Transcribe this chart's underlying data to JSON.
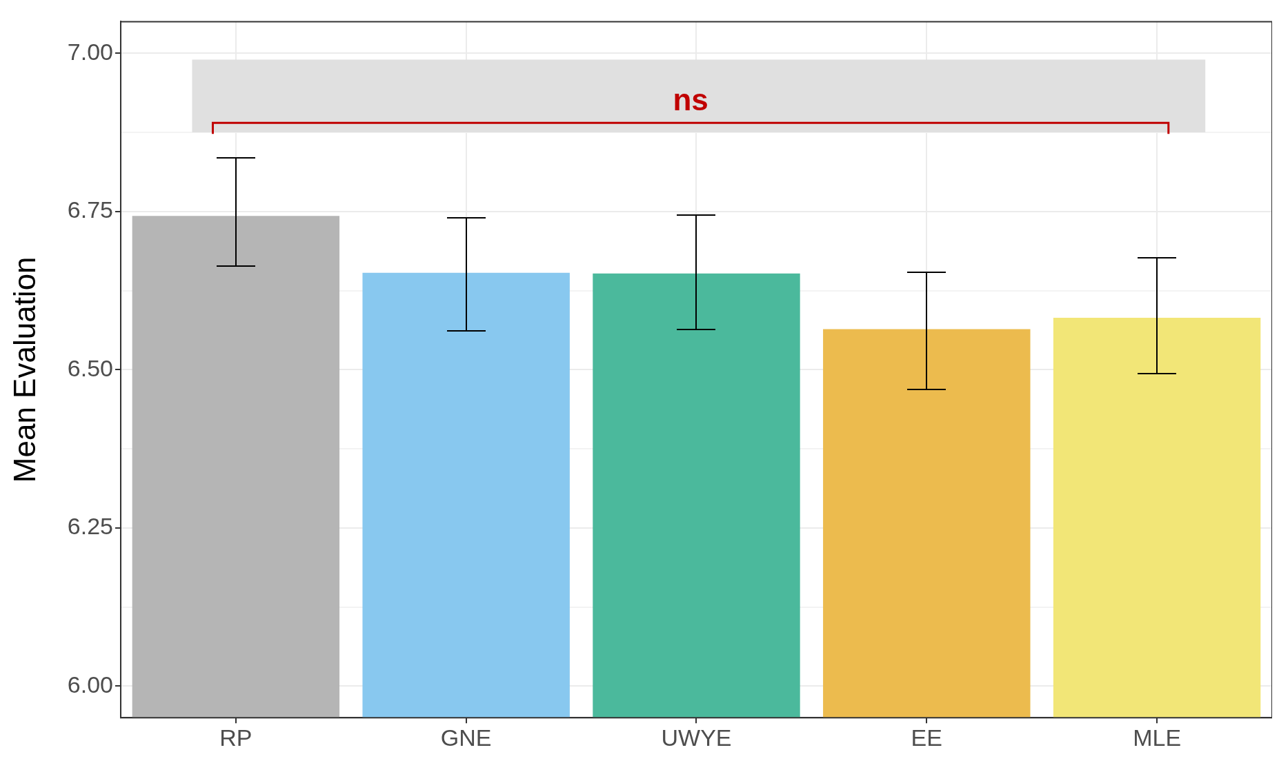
{
  "chart_data": {
    "type": "bar",
    "ylabel": "Mean Evaluation",
    "categories": [
      "RP",
      "GNE",
      "UWYE",
      "EE",
      "MLE"
    ],
    "values": [
      6.743,
      6.653,
      6.652,
      6.564,
      6.582
    ],
    "colors": [
      "#b5b5b5",
      "#88c8ef",
      "#4bb99c",
      "#ecbb4e",
      "#f2e677"
    ],
    "errors": [
      [
        6.664,
        6.835
      ],
      [
        6.561,
        6.74
      ],
      [
        6.564,
        6.744
      ],
      [
        6.469,
        6.654
      ],
      [
        6.494,
        6.677
      ]
    ],
    "ylim": [
      5.95,
      7.05
    ],
    "yticks": [
      {
        "value": 6,
        "label": "6.00"
      },
      {
        "value": 6.125,
        "label": null
      },
      {
        "value": 6.25,
        "label": "6.25"
      },
      {
        "value": 6.375,
        "label": null
      },
      {
        "value": 6.5,
        "label": "6.50"
      },
      {
        "value": 6.625,
        "label": null
      },
      {
        "value": 6.75,
        "label": "6.75"
      },
      {
        "value": 6.875,
        "label": null
      },
      {
        "value": 7,
        "label": "7.00"
      }
    ],
    "grid": true,
    "bands": [
      {
        "axis": "y",
        "from": 6.875,
        "to": 6.99,
        "color": "#e0e0e0",
        "label": null
      }
    ],
    "annotations": [
      "ns"
    ]
  }
}
